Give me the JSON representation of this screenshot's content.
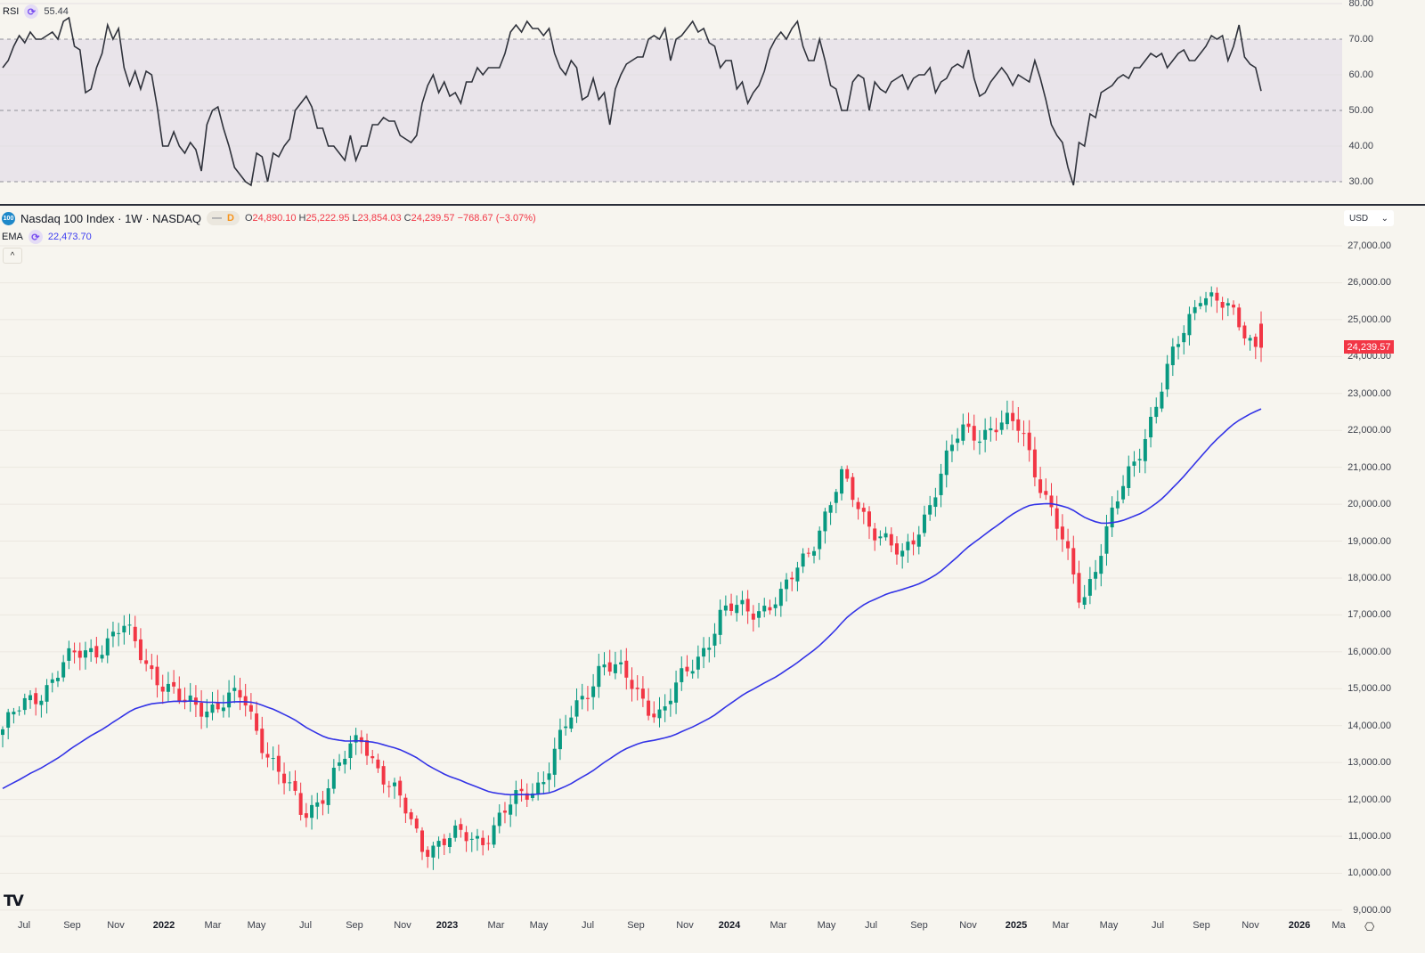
{
  "rsi_panel": {
    "label": "RSI",
    "value": "55.44",
    "axis": [
      "80.00",
      "70.00",
      "60.00",
      "50.00",
      "40.00",
      "30.00"
    ],
    "band_color": "#e9e4ea",
    "line_color": "#2f323b"
  },
  "price_panel": {
    "symbol_badge": "100",
    "title": "Nasdaq 100 Index · 1W · NASDAQ",
    "pill_dash": "—",
    "pill_d": "D",
    "open_label": "O",
    "open": "24,890.10",
    "high_label": "H",
    "high": "25,222.95",
    "low_label": "L",
    "low": "23,854.03",
    "close_label": "C",
    "close": "24,239.57",
    "change": "−768.67 (−3.07%)",
    "ema_label": "EMA",
    "ema_value": "22,473.70",
    "collapse_icon": "^",
    "currency": "USD",
    "last_price_tag": "24,239.57",
    "axis": [
      "27,000.00",
      "26,000.00",
      "25,000.00",
      "24,000.00",
      "23,000.00",
      "22,000.00",
      "21,000.00",
      "20,000.00",
      "19,000.00",
      "18,000.00",
      "17,000.00",
      "16,000.00",
      "15,000.00",
      "14,000.00",
      "13,000.00",
      "12,000.00",
      "11,000.00",
      "10,000.00",
      "9,000.00"
    ]
  },
  "x_axis": [
    "Jul",
    "Sep",
    "Nov",
    "2022",
    "Mar",
    "May",
    "Jul",
    "Sep",
    "Nov",
    "2023",
    "Mar",
    "May",
    "Jul",
    "Sep",
    "Nov",
    "2024",
    "Mar",
    "May",
    "Jul",
    "Sep",
    "Nov",
    "2025",
    "Mar",
    "May",
    "Jul",
    "Sep",
    "Nov",
    "2026",
    "Ma"
  ],
  "colors": {
    "up": "#089981",
    "down": "#f23645",
    "ema": "#3333e6",
    "bg": "#f7f5ef",
    "grid": "#ebe8e0"
  },
  "chart_data": {
    "type": "candlestick",
    "title": "Nasdaq 100 Index · 1W · NASDAQ",
    "xlabel": "",
    "ylabel": "USD",
    "ylim": [
      9000,
      27000
    ],
    "x_ticks": [
      "Jul 2021",
      "Sep",
      "Nov",
      "2022",
      "Mar",
      "May",
      "Jul",
      "Sep",
      "Nov",
      "2023",
      "Mar",
      "May",
      "Jul",
      "Sep",
      "Nov",
      "2024",
      "Mar",
      "May",
      "Jul",
      "Sep",
      "Nov",
      "2025",
      "Mar",
      "May",
      "Jul",
      "Sep",
      "Nov",
      "2026"
    ],
    "close_path_keypoints": [
      {
        "date": "2021-06",
        "close": 13900
      },
      {
        "date": "2021-09",
        "close": 15600
      },
      {
        "date": "2021-11",
        "close": 16600
      },
      {
        "date": "2022-01",
        "close": 14500
      },
      {
        "date": "2022-03",
        "close": 14700
      },
      {
        "date": "2022-06",
        "close": 11500
      },
      {
        "date": "2022-08",
        "close": 13700
      },
      {
        "date": "2022-10",
        "close": 10800
      },
      {
        "date": "2022-12",
        "close": 11000
      },
      {
        "date": "2023-03",
        "close": 12600
      },
      {
        "date": "2023-07",
        "close": 15800
      },
      {
        "date": "2023-10",
        "close": 14300
      },
      {
        "date": "2024-01",
        "close": 17000
      },
      {
        "date": "2024-04",
        "close": 17400
      },
      {
        "date": "2024-07",
        "close": 20600
      },
      {
        "date": "2024-08",
        "close": 18400
      },
      {
        "date": "2024-12",
        "close": 22000
      },
      {
        "date": "2025-02",
        "close": 22100
      },
      {
        "date": "2025-04",
        "close": 17400
      },
      {
        "date": "2025-06",
        "close": 21700
      },
      {
        "date": "2025-10",
        "close": 25900
      },
      {
        "date": "2025-11",
        "close": 24239.57
      }
    ],
    "ema": {
      "last": 22473.7
    },
    "rsi": {
      "last": 55.44,
      "ylim": [
        30,
        80
      ],
      "bands": [
        30,
        50,
        70
      ]
    }
  },
  "rsi_series": [
    62,
    64,
    68,
    71,
    69,
    72,
    70,
    70,
    71,
    72,
    70,
    75,
    76,
    68,
    67,
    55,
    56,
    62,
    66,
    74,
    70,
    73,
    62,
    57,
    61,
    56,
    61,
    60,
    51,
    40,
    40,
    44,
    40,
    38,
    41,
    39,
    33,
    46,
    50,
    51,
    45,
    40,
    34,
    32,
    30,
    29,
    38,
    37,
    30,
    38,
    37,
    40,
    42,
    50,
    52,
    54,
    51,
    45,
    45,
    40,
    40,
    38,
    36,
    43,
    36,
    40,
    40,
    46,
    46,
    48,
    47,
    47,
    43,
    42,
    41,
    43,
    52,
    57,
    60,
    55,
    58,
    54,
    55,
    52,
    58,
    58,
    62,
    60,
    62,
    62,
    62,
    66,
    72,
    74,
    72,
    75,
    73,
    73,
    71,
    73,
    66,
    62,
    60,
    64,
    62,
    53,
    54,
    59,
    53,
    55,
    46,
    56,
    60,
    63,
    64,
    65,
    65,
    70,
    71,
    70,
    73,
    64,
    70,
    71,
    73,
    75,
    72,
    73,
    69,
    68,
    62,
    64,
    64,
    56,
    58,
    52,
    55,
    57,
    61,
    67,
    70,
    72,
    70,
    73,
    75,
    68,
    64,
    64,
    70,
    64,
    57,
    56,
    50,
    50,
    58,
    60,
    59,
    50,
    58,
    56,
    55,
    58,
    59,
    60,
    56,
    59,
    60,
    60,
    62,
    55,
    58,
    59,
    62,
    63,
    62,
    67,
    59,
    54,
    55,
    58,
    60,
    62,
    60,
    57,
    60,
    59,
    58,
    64,
    59,
    53,
    46,
    43,
    41,
    34,
    29,
    41,
    40,
    49,
    48,
    55,
    56,
    57,
    59,
    60,
    59,
    62,
    62,
    64,
    66,
    65,
    66,
    62,
    64,
    66,
    67,
    64,
    64,
    66,
    68,
    71,
    70,
    71,
    64,
    68,
    74,
    65,
    63,
    62,
    55.44
  ],
  "ohlc_keys": "generated weekly candles follow close_path_keypoints"
}
